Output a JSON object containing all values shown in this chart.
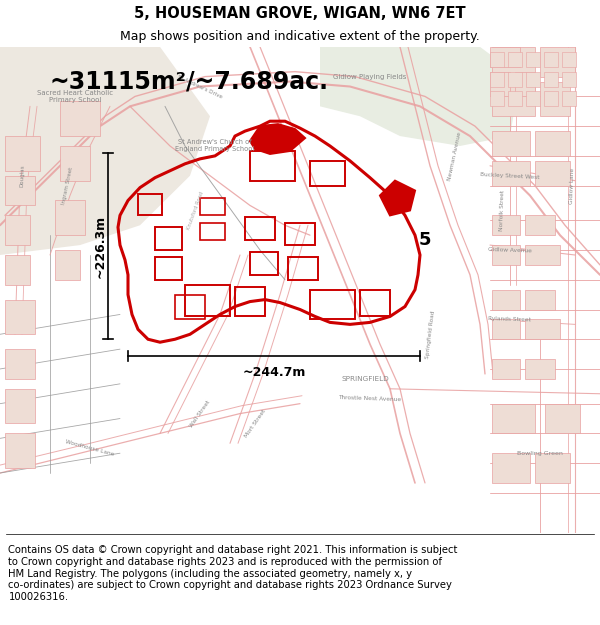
{
  "title": "5, HOUSEMAN GROVE, WIGAN, WN6 7ET",
  "subtitle": "Map shows position and indicative extent of the property.",
  "footer": "Contains OS data © Crown copyright and database right 2021. This information is subject\nto Crown copyright and database rights 2023 and is reproduced with the permission of\nHM Land Registry. The polygons (including the associated geometry, namely x, y\nco-ordinates) are subject to Crown copyright and database rights 2023 Ordnance Survey\n100026316.",
  "area_text": "~31115m²/~7.689ac.",
  "width_text": "~244.7m",
  "height_text": "~226.3m",
  "label_5": "5",
  "map_bg_color": "#f7f3f0",
  "street_color": "#e8a0a0",
  "highlight_color": "#cc0000",
  "title_fontsize": 10.5,
  "subtitle_fontsize": 9,
  "footer_fontsize": 7.2,
  "area_fontsize": 17,
  "figsize": [
    6.0,
    6.25
  ],
  "dpi": 100
}
